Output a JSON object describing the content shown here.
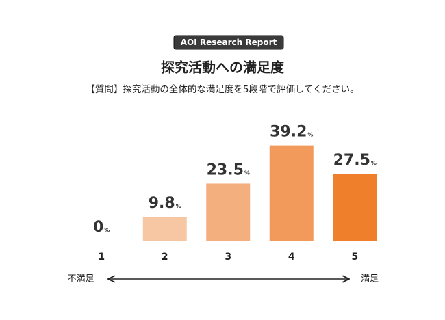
{
  "badge": "AOI Research Report",
  "chart_data": {
    "type": "bar",
    "title": "探究活動への満足度",
    "subtitle": "【質問】探究活動の全体的な満足度を5段階で評価してください。",
    "categories": [
      "1",
      "2",
      "3",
      "4",
      "5"
    ],
    "values": [
      0,
      9.8,
      23.5,
      39.2,
      27.5
    ],
    "value_labels": [
      "0%",
      "9.8%",
      "23.5%",
      "39.2%",
      "27.5%"
    ],
    "colors": [
      "#f7c7a3",
      "#f7c7a3",
      "#f4af7e",
      "#f29a5c",
      "#ef7f2a"
    ],
    "ylim": [
      0,
      45
    ],
    "scale_left_label": "不満足",
    "scale_right_label": "満足"
  }
}
